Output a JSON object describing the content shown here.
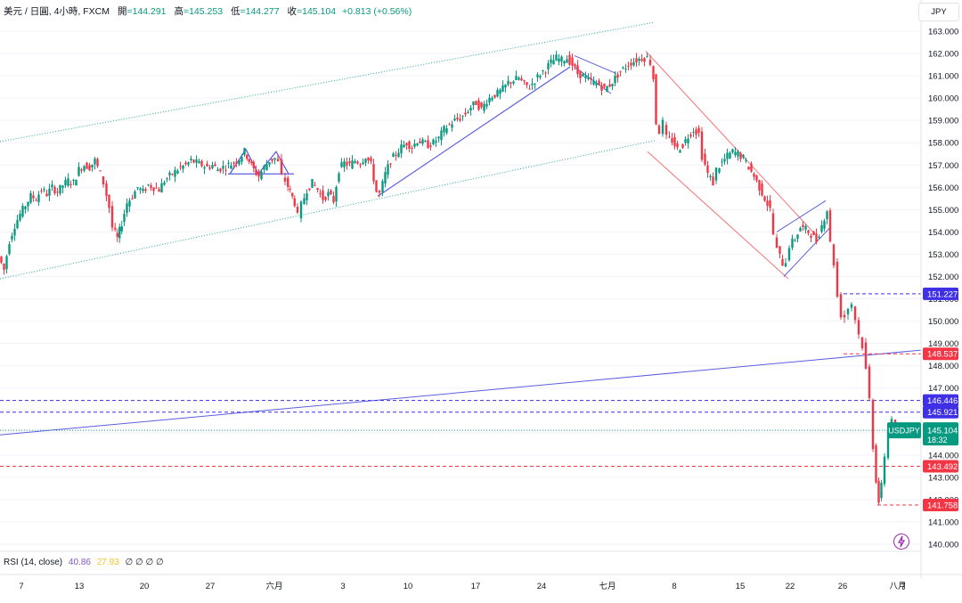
{
  "header": {
    "symbol": "美元 / 日圓, 4小時, FXCM",
    "open_label": "開",
    "open": "=144.291",
    "high_label": "高",
    "high": "=145.253",
    "low_label": "低",
    "low": "=144.277",
    "close_label": "收",
    "close": "=145.104",
    "change": "+0.813 (+0.56%)"
  },
  "currency_button": "JPY",
  "rsi": {
    "label": "RSI (14, close)",
    "value1": "40.86",
    "value2": "27.93",
    "zeros": "∅ ∅ ∅ ∅"
  },
  "colors": {
    "up": "#089981",
    "down": "#f23645",
    "trend": "#5b5fe0",
    "channel_green": "#26a69a",
    "red_line": "#f77c80",
    "badge_blue": "#3f2fe5",
    "badge_red": "#f23645",
    "badge_green": "#089981"
  },
  "chart_data": {
    "type": "candlestick",
    "symbol": "USDJPY",
    "y_axis": {
      "min": 140,
      "max": 163,
      "ticks": [
        "163.000",
        "162.000",
        "161.000",
        "160.000",
        "159.000",
        "158.000",
        "157.000",
        "156.000",
        "155.000",
        "154.000",
        "153.000",
        "152.000",
        "151.000",
        "150.000",
        "149.000",
        "148.000",
        "147.000",
        "146.000",
        "145.000",
        "144.000",
        "143.000",
        "142.000",
        "141.000",
        "140.000"
      ]
    },
    "x_axis": {
      "ticks": [
        "7",
        "13",
        "20",
        "27",
        "六月",
        "3",
        "10",
        "17",
        "24",
        "七月",
        "8",
        "15",
        "22",
        "26",
        "八月",
        "7"
      ]
    },
    "price_path": [
      [
        0,
        152.9
      ],
      [
        6,
        152.3
      ],
      [
        12,
        153.6
      ],
      [
        18,
        154.3
      ],
      [
        24,
        154.8
      ],
      [
        30,
        155.2
      ],
      [
        36,
        155.6
      ],
      [
        42,
        155.5
      ],
      [
        48,
        155.9
      ],
      [
        54,
        155.7
      ],
      [
        60,
        156.0
      ],
      [
        66,
        155.8
      ],
      [
        72,
        156.1
      ],
      [
        78,
        156.3
      ],
      [
        84,
        156.2
      ],
      [
        90,
        156.8
      ],
      [
        96,
        157.0
      ],
      [
        102,
        156.9
      ],
      [
        108,
        157.2
      ],
      [
        114,
        156.6
      ],
      [
        118,
        156.2
      ],
      [
        124,
        155.1
      ],
      [
        128,
        154.2
      ],
      [
        133,
        153.7
      ],
      [
        138,
        154.4
      ],
      [
        144,
        155.3
      ],
      [
        150,
        155.6
      ],
      [
        156,
        156.0
      ],
      [
        162,
        155.8
      ],
      [
        168,
        156.1
      ],
      [
        174,
        156.0
      ],
      [
        180,
        155.9
      ],
      [
        186,
        156.3
      ],
      [
        192,
        156.5
      ],
      [
        198,
        156.7
      ],
      [
        204,
        156.9
      ],
      [
        210,
        157.0
      ],
      [
        216,
        157.2
      ],
      [
        222,
        157.1
      ],
      [
        228,
        157.0
      ],
      [
        234,
        156.9
      ],
      [
        240,
        157.0
      ],
      [
        246,
        156.8
      ],
      [
        252,
        156.9
      ],
      [
        258,
        157.0
      ],
      [
        264,
        157.1
      ],
      [
        270,
        157.3
      ],
      [
        276,
        157.6
      ],
      [
        281,
        157.2
      ],
      [
        286,
        156.8
      ],
      [
        292,
        156.5
      ],
      [
        298,
        156.9
      ],
      [
        304,
        157.2
      ],
      [
        310,
        157.3
      ],
      [
        314,
        157.1
      ],
      [
        318,
        156.5
      ],
      [
        322,
        156.3
      ],
      [
        327,
        155.8
      ],
      [
        332,
        155.3
      ],
      [
        336,
        154.7
      ],
      [
        340,
        155.2
      ],
      [
        346,
        155.9
      ],
      [
        352,
        156.2
      ],
      [
        358,
        155.9
      ],
      [
        364,
        155.5
      ],
      [
        370,
        155.7
      ],
      [
        376,
        155.4
      ],
      [
        382,
        156.8
      ],
      [
        388,
        157.1
      ],
      [
        394,
        157.0
      ],
      [
        400,
        157.2
      ],
      [
        406,
        157.1
      ],
      [
        412,
        157.4
      ],
      [
        418,
        157.0
      ],
      [
        424,
        155.8
      ],
      [
        428,
        155.7
      ],
      [
        434,
        156.6
      ],
      [
        440,
        157.2
      ],
      [
        446,
        157.5
      ],
      [
        452,
        157.8
      ],
      [
        458,
        158.0
      ],
      [
        464,
        157.8
      ],
      [
        470,
        158.1
      ],
      [
        476,
        158.0
      ],
      [
        482,
        157.9
      ],
      [
        488,
        158.0
      ],
      [
        494,
        158.2
      ],
      [
        500,
        158.6
      ],
      [
        506,
        158.8
      ],
      [
        512,
        159.0
      ],
      [
        518,
        159.1
      ],
      [
        524,
        159.3
      ],
      [
        530,
        159.6
      ],
      [
        536,
        159.8
      ],
      [
        542,
        159.5
      ],
      [
        548,
        159.9
      ],
      [
        554,
        160.1
      ],
      [
        560,
        160.2
      ],
      [
        566,
        160.4
      ],
      [
        572,
        160.7
      ],
      [
        578,
        160.8
      ],
      [
        584,
        160.9
      ],
      [
        590,
        160.6
      ],
      [
        596,
        160.5
      ],
      [
        602,
        160.8
      ],
      [
        608,
        161.1
      ],
      [
        614,
        161.3
      ],
      [
        620,
        161.6
      ],
      [
        626,
        161.8
      ],
      [
        632,
        161.7
      ],
      [
        638,
        161.8
      ],
      [
        644,
        161.5
      ],
      [
        650,
        161.1
      ],
      [
        656,
        161.0
      ],
      [
        662,
        160.8
      ],
      [
        668,
        160.7
      ],
      [
        674,
        160.6
      ],
      [
        680,
        160.4
      ],
      [
        686,
        160.6
      ],
      [
        692,
        160.9
      ],
      [
        698,
        161.2
      ],
      [
        704,
        161.4
      ],
      [
        710,
        161.6
      ],
      [
        716,
        161.7
      ],
      [
        722,
        161.8
      ],
      [
        728,
        161.8
      ],
      [
        732,
        161.6
      ],
      [
        735,
        160.9
      ],
      [
        738,
        158.9
      ],
      [
        742,
        158.5
      ],
      [
        746,
        158.9
      ],
      [
        750,
        158.2
      ],
      [
        756,
        158.1
      ],
      [
        762,
        157.7
      ],
      [
        768,
        157.9
      ],
      [
        774,
        158.3
      ],
      [
        780,
        158.6
      ],
      [
        786,
        158.4
      ],
      [
        790,
        157.4
      ],
      [
        796,
        156.6
      ],
      [
        802,
        156.2
      ],
      [
        806,
        156.8
      ],
      [
        812,
        157.1
      ],
      [
        818,
        157.4
      ],
      [
        824,
        157.6
      ],
      [
        830,
        157.5
      ],
      [
        836,
        157.3
      ],
      [
        842,
        156.9
      ],
      [
        848,
        156.5
      ],
      [
        854,
        156.0
      ],
      [
        860,
        155.5
      ],
      [
        866,
        155.0
      ],
      [
        870,
        153.9
      ],
      [
        874,
        153.2
      ],
      [
        880,
        152.6
      ],
      [
        884,
        152.7
      ],
      [
        888,
        153.4
      ],
      [
        894,
        153.7
      ],
      [
        900,
        154.2
      ],
      [
        906,
        154.1
      ],
      [
        912,
        153.9
      ],
      [
        918,
        153.6
      ],
      [
        924,
        154.3
      ],
      [
        930,
        155.0
      ],
      [
        934,
        153.5
      ],
      [
        938,
        152.6
      ],
      [
        942,
        151.1
      ],
      [
        946,
        150.3
      ],
      [
        950,
        150.2
      ],
      [
        954,
        150.6
      ],
      [
        958,
        150.8
      ],
      [
        962,
        150.1
      ],
      [
        966,
        149.4
      ],
      [
        970,
        148.9
      ],
      [
        974,
        147.8
      ],
      [
        978,
        146.5
      ],
      [
        982,
        144.4
      ],
      [
        985,
        142.9
      ],
      [
        988,
        141.9
      ],
      [
        991,
        142.6
      ],
      [
        995,
        144.0
      ],
      [
        999,
        145.2
      ],
      [
        1003,
        145.7
      ],
      [
        1007,
        144.8
      ],
      [
        1011,
        145.1
      ]
    ],
    "annotations": {
      "labels": [
        {
          "name": "level-151",
          "value": "151.227",
          "color": "blue"
        },
        {
          "name": "level-148",
          "value": "148.537",
          "color": "red"
        },
        {
          "name": "level-146-4",
          "value": "146.446",
          "color": "blue"
        },
        {
          "name": "level-145-9",
          "value": "145.921",
          "color": "blue"
        },
        {
          "name": "last-price",
          "value": "145.104",
          "ticker": "USDJPY",
          "countdown": "18:32",
          "color": "green"
        },
        {
          "name": "level-143",
          "value": "143.492",
          "color": "red"
        },
        {
          "name": "level-141",
          "value": "141.758",
          "color": "red"
        }
      ]
    }
  }
}
